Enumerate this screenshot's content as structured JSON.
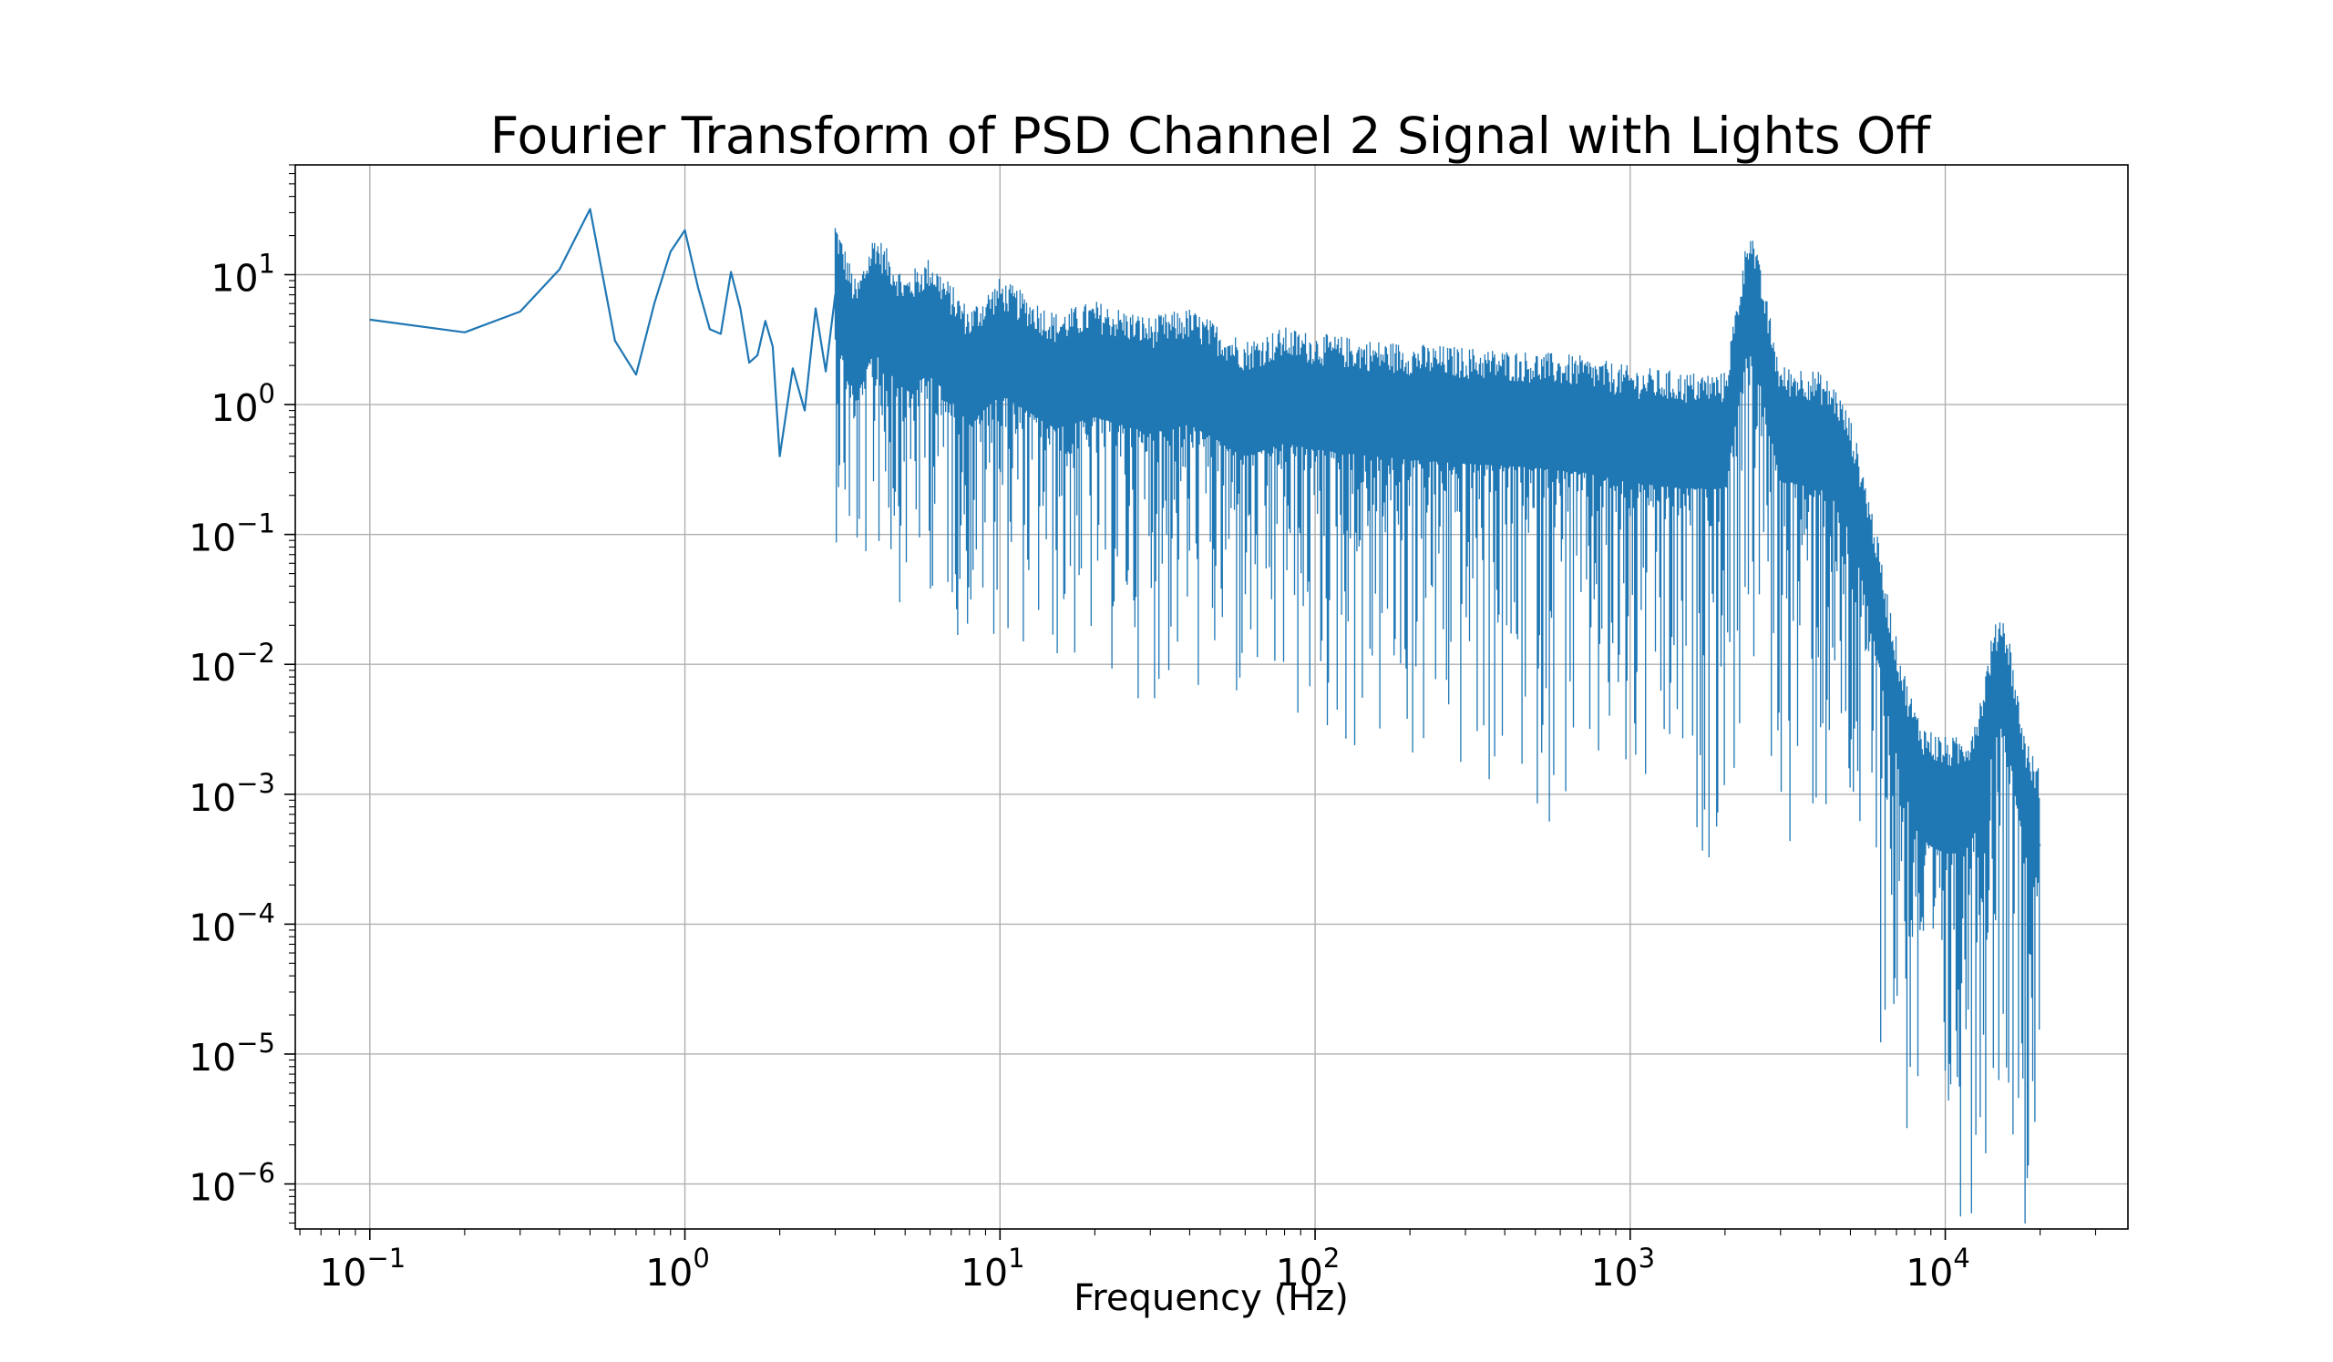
{
  "chart_data": {
    "type": "line",
    "title": "Fourier Transform of PSD Channel 2 Signal with Lights Off",
    "xlabel": "Frequency (Hz)",
    "ylabel": "",
    "xscale": "log",
    "yscale": "log",
    "xlim": [
      0.058,
      38000
    ],
    "ylim": [
      4.5e-07,
      70
    ],
    "grid": true,
    "line_color": "#1f77b4",
    "x_ticks": [
      {
        "base": "10",
        "exp": "−1",
        "value": 0.1
      },
      {
        "base": "10",
        "exp": "0",
        "value": 1
      },
      {
        "base": "10",
        "exp": "1",
        "value": 10
      },
      {
        "base": "10",
        "exp": "2",
        "value": 100
      },
      {
        "base": "10",
        "exp": "3",
        "value": 1000
      },
      {
        "base": "10",
        "exp": "4",
        "value": 10000
      }
    ],
    "y_ticks": [
      {
        "base": "10",
        "exp": "1",
        "value": 10
      },
      {
        "base": "10",
        "exp": "0",
        "value": 1
      },
      {
        "base": "10",
        "exp": "−1",
        "value": 0.1
      },
      {
        "base": "10",
        "exp": "−2",
        "value": 0.01
      },
      {
        "base": "10",
        "exp": "−3",
        "value": 0.001
      },
      {
        "base": "10",
        "exp": "−4",
        "value": 0.0001
      },
      {
        "base": "10",
        "exp": "−5",
        "value": 1e-05
      },
      {
        "base": "10",
        "exp": "−6",
        "value": 1e-06
      }
    ],
    "series": [
      {
        "x": [
          0.1,
          0.2,
          0.3,
          0.4,
          0.5,
          0.6,
          0.7,
          0.8,
          0.9,
          1.0,
          1.1,
          1.2,
          1.3,
          1.4,
          1.5,
          1.6,
          1.7,
          1.8,
          1.9,
          2.0,
          2.2,
          2.4,
          2.6,
          2.8,
          3.0,
          3.5,
          4.0,
          5.0,
          6.0,
          8.0,
          10,
          15,
          20,
          30,
          40,
          60,
          80,
          100,
          150,
          200,
          300,
          500,
          700,
          1000,
          1500,
          2000,
          2400,
          3000,
          3500,
          4000,
          4500,
          5000,
          5500,
          6000,
          6500,
          7000,
          7500,
          8000,
          8500,
          9000,
          10000,
          11000,
          12000,
          13000,
          14000,
          15000,
          16000,
          17000,
          18000,
          19000,
          20000
        ],
        "y": [
          4.5,
          3.6,
          5.2,
          11,
          32,
          3.1,
          1.7,
          6,
          15,
          22,
          8,
          3.8,
          3.5,
          10.5,
          5.5,
          2.1,
          2.4,
          4.4,
          2.8,
          0.4,
          1.9,
          0.9,
          5.5,
          1.8,
          7,
          2.2,
          5.5,
          2.5,
          3.5,
          1.4,
          2.4,
          1.3,
          1.6,
          1.2,
          1.4,
          0.8,
          1.0,
          0.9,
          0.8,
          0.75,
          0.7,
          0.65,
          0.6,
          0.5,
          0.45,
          0.45,
          6.8,
          0.5,
          0.5,
          0.45,
          0.35,
          0.2,
          0.08,
          0.03,
          0.01,
          0.004,
          0.002,
          0.0012,
          0.0009,
          0.0008,
          0.0007,
          0.0007,
          0.0008,
          0.0015,
          0.004,
          0.007,
          0.004,
          0.0015,
          0.0007,
          0.0005,
          0.0004
        ]
      }
    ]
  }
}
